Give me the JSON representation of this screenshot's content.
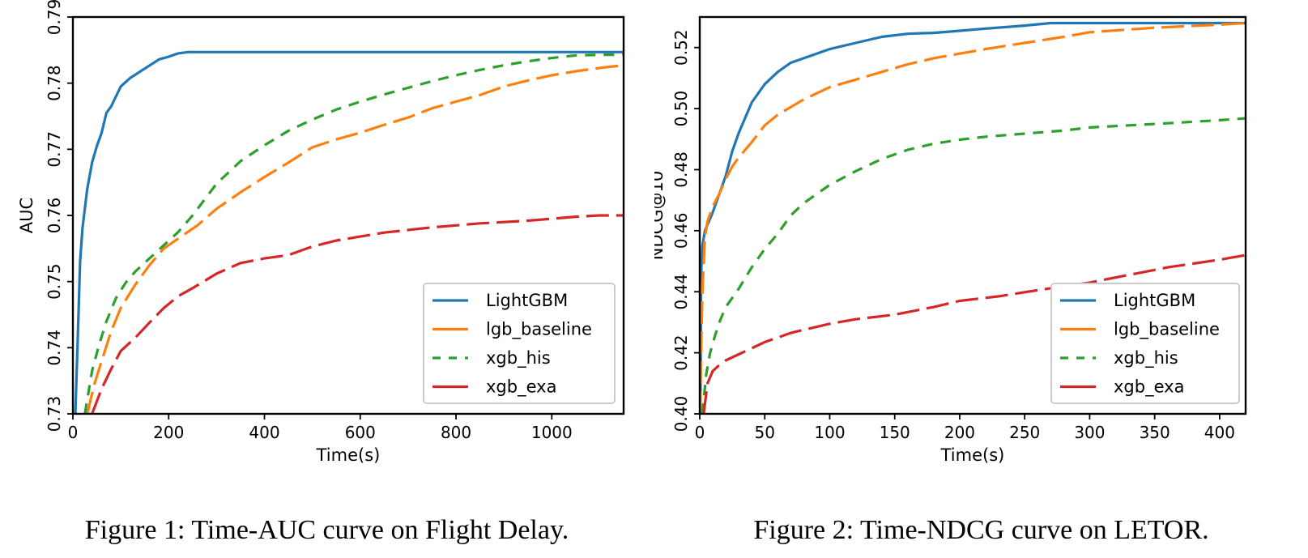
{
  "colors": {
    "lightgbm": "#1f77b4",
    "lgb_baseline": "#ff7f0e",
    "xgb_his": "#2ca02c",
    "xgb_exa": "#d62728"
  },
  "chart_data": [
    {
      "type": "line",
      "caption": "Figure 1: Time-AUC curve on Flight Delay.",
      "xlabel": "Time(s)",
      "ylabel": "AUC",
      "xlim": [
        0,
        1150
      ],
      "ylim": [
        0.73,
        0.79
      ],
      "xticks": [
        0,
        200,
        400,
        600,
        800,
        1000
      ],
      "xtick_labels": [
        "0",
        "200",
        "400",
        "600",
        "800",
        "1000"
      ],
      "yticks": [
        0.73,
        0.74,
        0.75,
        0.76,
        0.77,
        0.78,
        0.79
      ],
      "ytick_labels": [
        "0.73",
        "0.74",
        "0.75",
        "0.76",
        "0.77",
        "0.78",
        "0.79"
      ],
      "legend_position": "lower-right",
      "grid": false,
      "series": [
        {
          "name": "LightGBM",
          "color_key": "lightgbm",
          "style": "solid",
          "x": [
            5,
            10,
            15,
            20,
            30,
            40,
            50,
            60,
            70,
            80,
            100,
            120,
            150,
            180,
            200,
            220,
            240,
            1150
          ],
          "y": [
            0.73,
            0.741,
            0.753,
            0.758,
            0.764,
            0.768,
            0.7705,
            0.7725,
            0.7755,
            0.7765,
            0.7795,
            0.7808,
            0.7822,
            0.7836,
            0.784,
            0.7845,
            0.7847,
            0.7847
          ]
        },
        {
          "name": "lgb_baseline",
          "color_key": "lgb_baseline",
          "style": "dashed-long",
          "x": [
            30,
            45,
            60,
            80,
            100,
            130,
            160,
            190,
            220,
            260,
            300,
            350,
            400,
            450,
            500,
            550,
            600,
            650,
            700,
            750,
            800,
            850,
            900,
            950,
            1000,
            1050,
            1100,
            1150
          ],
          "y": [
            0.73,
            0.7345,
            0.738,
            0.7425,
            0.746,
            0.7495,
            0.7525,
            0.755,
            0.7565,
            0.7585,
            0.761,
            0.7635,
            0.7658,
            0.768,
            0.7703,
            0.7715,
            0.7725,
            0.7737,
            0.7748,
            0.7762,
            0.7772,
            0.7782,
            0.7795,
            0.7804,
            0.7812,
            0.7818,
            0.7823,
            0.7827
          ]
        },
        {
          "name": "xgb_his",
          "color_key": "xgb_his",
          "style": "dashed-short",
          "x": [
            25,
            40,
            55,
            70,
            90,
            110,
            130,
            160,
            190,
            220,
            250,
            300,
            350,
            400,
            450,
            500,
            550,
            600,
            650,
            700,
            750,
            800,
            850,
            900,
            950,
            1000,
            1050,
            1100,
            1150
          ],
          "y": [
            0.73,
            0.7365,
            0.7405,
            0.744,
            0.7475,
            0.7498,
            0.7515,
            0.7535,
            0.7555,
            0.7575,
            0.76,
            0.7648,
            0.7682,
            0.7706,
            0.7728,
            0.7745,
            0.776,
            0.7772,
            0.7783,
            0.7793,
            0.7803,
            0.7812,
            0.782,
            0.7827,
            0.7833,
            0.7838,
            0.7842,
            0.7843,
            0.7843
          ]
        },
        {
          "name": "xgb_exa",
          "color_key": "xgb_exa",
          "style": "dashed-long",
          "x": [
            40,
            60,
            80,
            100,
            130,
            160,
            190,
            220,
            250,
            300,
            350,
            400,
            450,
            500,
            550,
            600,
            650,
            700,
            750,
            800,
            850,
            900,
            950,
            1000,
            1050,
            1100,
            1150
          ],
          "y": [
            0.73,
            0.7338,
            0.7368,
            0.7395,
            0.7415,
            0.7438,
            0.746,
            0.7478,
            0.749,
            0.7512,
            0.7528,
            0.7535,
            0.754,
            0.7553,
            0.7562,
            0.7568,
            0.7574,
            0.7578,
            0.7582,
            0.7585,
            0.7588,
            0.759,
            0.7592,
            0.7595,
            0.7598,
            0.76,
            0.76
          ]
        }
      ]
    },
    {
      "type": "line",
      "caption": "Figure 2: Time-NDCG curve on LETOR.",
      "xlabel": "Time(s)",
      "ylabel": "NDCG@10",
      "xlim": [
        0,
        420
      ],
      "ylim": [
        0.4,
        0.53
      ],
      "xticks": [
        0,
        50,
        100,
        150,
        200,
        250,
        300,
        350,
        400
      ],
      "xtick_labels": [
        "0",
        "50",
        "100",
        "150",
        "200",
        "250",
        "300",
        "350",
        "400"
      ],
      "yticks": [
        0.4,
        0.42,
        0.44,
        0.46,
        0.48,
        0.5,
        0.52
      ],
      "ytick_labels": [
        "0.40",
        "0.42",
        "0.44",
        "0.46",
        "0.48",
        "0.50",
        "0.52"
      ],
      "legend_position": "lower-right",
      "grid": false,
      "series": [
        {
          "name": "LightGBM",
          "color_key": "lightgbm",
          "style": "solid",
          "x": [
            0.5,
            1,
            2,
            4,
            6,
            10,
            15,
            20,
            25,
            30,
            40,
            50,
            60,
            70,
            80,
            90,
            100,
            120,
            140,
            160,
            180,
            200,
            220,
            250,
            270,
            300,
            350,
            420
          ],
          "y": [
            0.4,
            0.445,
            0.455,
            0.46,
            0.462,
            0.466,
            0.472,
            0.478,
            0.486,
            0.492,
            0.502,
            0.508,
            0.512,
            0.515,
            0.5165,
            0.518,
            0.5195,
            0.5215,
            0.5235,
            0.5245,
            0.5248,
            0.5255,
            0.5262,
            0.5272,
            0.528,
            0.528,
            0.528,
            0.528
          ]
        },
        {
          "name": "lgb_baseline",
          "color_key": "lgb_baseline",
          "style": "dashed-long",
          "x": [
            0.5,
            1,
            2,
            4,
            6,
            10,
            15,
            20,
            25,
            30,
            40,
            50,
            60,
            70,
            80,
            90,
            100,
            120,
            140,
            160,
            180,
            200,
            220,
            250,
            280,
            300,
            350,
            400,
            420
          ],
          "y": [
            0.4,
            0.42,
            0.44,
            0.458,
            0.463,
            0.468,
            0.472,
            0.477,
            0.481,
            0.484,
            0.489,
            0.4945,
            0.498,
            0.5005,
            0.503,
            0.505,
            0.507,
            0.5095,
            0.512,
            0.5145,
            0.5165,
            0.518,
            0.5195,
            0.5215,
            0.5235,
            0.525,
            0.5265,
            0.5275,
            0.528
          ]
        },
        {
          "name": "xgb_his",
          "color_key": "xgb_his",
          "style": "dashed-short",
          "x": [
            2,
            5,
            8,
            12,
            16,
            20,
            25,
            30,
            40,
            50,
            60,
            70,
            80,
            90,
            100,
            120,
            140,
            160,
            180,
            200,
            220,
            250,
            280,
            300,
            330,
            360,
            400,
            420
          ],
          "y": [
            0.4,
            0.413,
            0.42,
            0.426,
            0.431,
            0.435,
            0.438,
            0.441,
            0.448,
            0.454,
            0.459,
            0.465,
            0.469,
            0.472,
            0.475,
            0.4795,
            0.4835,
            0.4865,
            0.4885,
            0.4898,
            0.4908,
            0.4918,
            0.4928,
            0.4938,
            0.4945,
            0.4952,
            0.4962,
            0.4968
          ]
        },
        {
          "name": "xgb_exa",
          "color_key": "xgb_exa",
          "style": "dashed-long",
          "x": [
            3,
            6,
            10,
            15,
            20,
            30,
            40,
            50,
            60,
            70,
            80,
            100,
            120,
            150,
            180,
            200,
            230,
            260,
            300,
            330,
            360,
            400,
            420
          ],
          "y": [
            0.4,
            0.41,
            0.414,
            0.416,
            0.4175,
            0.4195,
            0.4215,
            0.4235,
            0.425,
            0.4265,
            0.4275,
            0.4295,
            0.431,
            0.4325,
            0.435,
            0.437,
            0.4385,
            0.4405,
            0.443,
            0.4455,
            0.448,
            0.4505,
            0.452
          ]
        }
      ]
    }
  ]
}
